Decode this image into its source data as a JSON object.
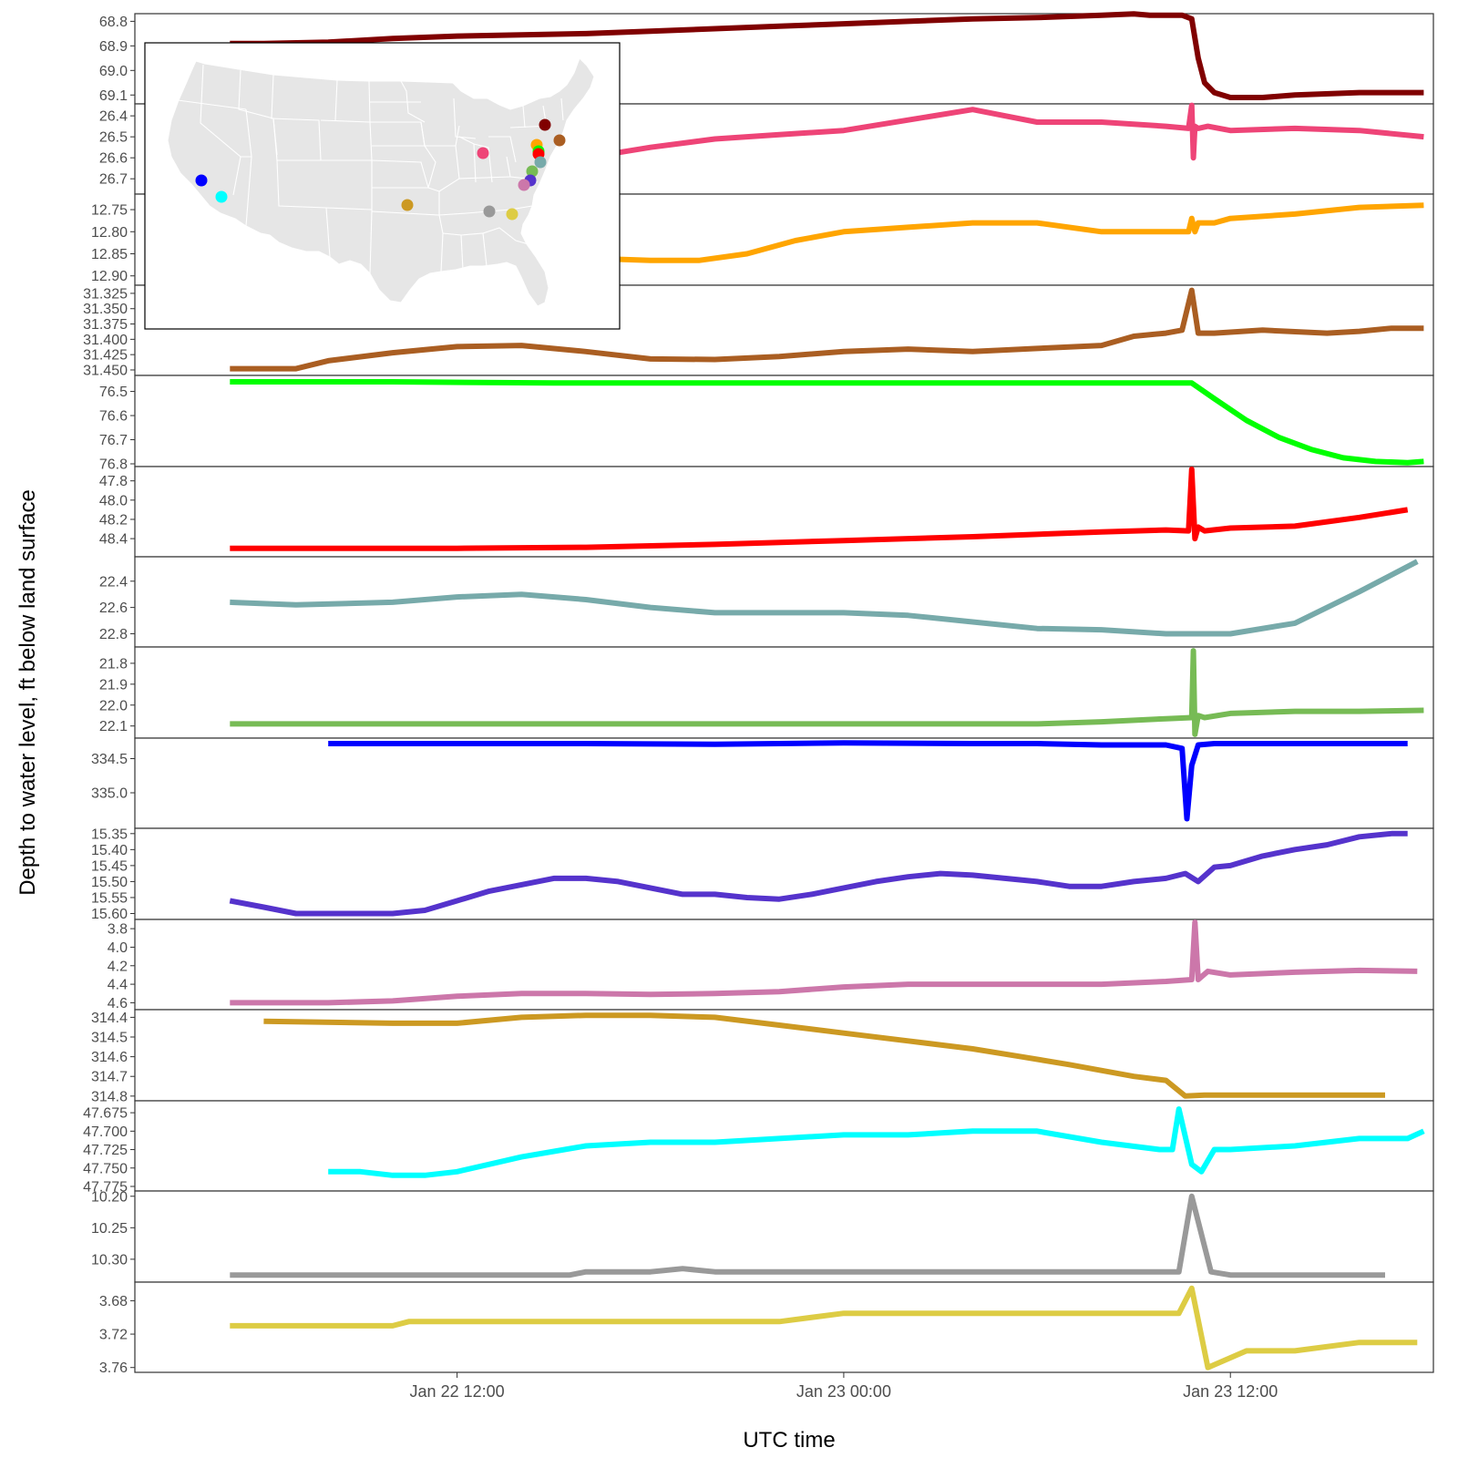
{
  "chart_data": {
    "type": "line",
    "title": "",
    "xlabel": "UTC time",
    "ylabel": "Depth to water level, ft below land surface",
    "x_unit": "hours",
    "x_ticks": [
      {
        "label": "Jan 22 12:00",
        "x": 12
      },
      {
        "label": "Jan 23 00:00",
        "x": 24
      },
      {
        "label": "Jan 23 12:00",
        "x": 36
      }
    ],
    "xlim": [
      2,
      42.3
    ],
    "panels": [
      {
        "name": "",
        "color": "#800000",
        "ylim": [
          68.78,
          69.125
        ],
        "inverted": true,
        "ticks": [
          {
            "v": 68.8,
            "label": "68.8"
          },
          {
            "v": 68.9,
            "label": "68.9"
          },
          {
            "v": 69.0,
            "label": "69.0"
          },
          {
            "v": 69.1,
            "label": "69.1"
          }
        ],
        "x": [
          4.95,
          6,
          8,
          10,
          12,
          14,
          16,
          18,
          20,
          22,
          24,
          26,
          28,
          30,
          32,
          33,
          33.5,
          34.5,
          34.8,
          35.0,
          35.2,
          35.5,
          36,
          37,
          38,
          40,
          42
        ],
        "y": [
          68.89,
          68.89,
          68.885,
          68.87,
          68.86,
          68.855,
          68.85,
          68.84,
          68.83,
          68.82,
          68.81,
          68.8,
          68.79,
          68.785,
          68.775,
          68.77,
          68.775,
          68.775,
          68.79,
          68.95,
          69.05,
          69.09,
          69.11,
          69.11,
          69.1,
          69.09,
          69.09
        ]
      },
      {
        "name": "",
        "color": "#EE4477",
        "ylim": [
          26.356,
          26.76
        ],
        "inverted": true,
        "ticks": [
          {
            "v": 26.4,
            "label": "26.4"
          },
          {
            "v": 26.5,
            "label": "26.5"
          },
          {
            "v": 26.6,
            "label": "26.6"
          },
          {
            "v": 26.7,
            "label": "26.7"
          }
        ],
        "x": [
          4.95,
          8,
          10,
          12,
          14,
          16,
          18,
          20,
          22,
          24,
          26,
          28,
          30,
          32,
          34,
          34.7,
          34.8,
          34.85,
          34.9,
          35.0,
          35.3,
          36,
          38,
          40,
          42
        ],
        "y": [
          26.63,
          26.63,
          26.63,
          26.62,
          26.62,
          26.6,
          26.55,
          26.51,
          26.49,
          26.47,
          26.42,
          26.37,
          26.43,
          26.43,
          26.45,
          26.46,
          26.35,
          26.6,
          26.45,
          26.46,
          26.45,
          26.47,
          26.46,
          26.47,
          26.5
        ]
      },
      {
        "name": "",
        "color": "#FFA500",
        "ylim": [
          12.721,
          12.915
        ],
        "inverted": true,
        "ticks": [
          {
            "v": 12.75,
            "label": "12.75"
          },
          {
            "v": 12.8,
            "label": "12.80"
          },
          {
            "v": 12.85,
            "label": "12.85"
          },
          {
            "v": 12.9,
            "label": "12.90"
          }
        ],
        "x": [
          4.95,
          12,
          14,
          16,
          18,
          19.5,
          21,
          22.5,
          24,
          26,
          28,
          30,
          32,
          34,
          34.7,
          34.8,
          34.9,
          35.0,
          35.5,
          36,
          38,
          40,
          42
        ],
        "y": [
          12.835,
          12.86,
          12.86,
          12.86,
          12.865,
          12.865,
          12.85,
          12.82,
          12.8,
          12.79,
          12.78,
          12.78,
          12.8,
          12.8,
          12.8,
          12.77,
          12.8,
          12.78,
          12.78,
          12.77,
          12.76,
          12.745,
          12.74
        ]
      },
      {
        "name": "",
        "color": "#AA5E22",
        "ylim": [
          31.3162,
          31.4545
        ],
        "inverted": true,
        "ticks": [
          {
            "v": 31.325,
            "label": "31.325"
          },
          {
            "v": 31.35,
            "label": "31.350"
          },
          {
            "v": 31.375,
            "label": "31.375"
          },
          {
            "v": 31.4,
            "label": "31.400"
          },
          {
            "v": 31.425,
            "label": "31.425"
          },
          {
            "v": 31.45,
            "label": "31.450"
          }
        ],
        "x": [
          4.95,
          7,
          8,
          10,
          12,
          14,
          16,
          18,
          20,
          22,
          24,
          26,
          28,
          30,
          32,
          33,
          34,
          34.5,
          34.8,
          35,
          35.5,
          37,
          39,
          40,
          41,
          42
        ],
        "y": [
          31.448,
          31.448,
          31.435,
          31.422,
          31.412,
          31.41,
          31.42,
          31.432,
          31.433,
          31.428,
          31.42,
          31.416,
          31.42,
          31.415,
          31.41,
          31.395,
          31.39,
          31.385,
          31.32,
          31.39,
          31.39,
          31.385,
          31.39,
          31.387,
          31.382,
          31.382
        ]
      },
      {
        "name": "",
        "color": "#00FF00",
        "ylim": [
          76.445,
          76.8
        ],
        "inverted": true,
        "ticks": [
          {
            "v": 76.5,
            "label": "76.5"
          },
          {
            "v": 76.6,
            "label": "76.6"
          },
          {
            "v": 76.7,
            "label": "76.7"
          },
          {
            "v": 76.8,
            "label": "76.8"
          }
        ],
        "x": [
          4.95,
          10,
          15,
          20,
          25,
          30,
          34,
          34.8,
          35.5,
          36.5,
          37.5,
          38.5,
          39.5,
          40.5,
          41.5,
          42
        ],
        "y": [
          76.46,
          76.46,
          76.465,
          76.465,
          76.465,
          76.465,
          76.465,
          76.465,
          76.53,
          76.62,
          76.69,
          76.74,
          76.775,
          76.79,
          76.795,
          76.79
        ]
      },
      {
        "name": "",
        "color": "#FF0000",
        "ylim": [
          47.68,
          48.56
        ],
        "inverted": true,
        "ticks": [
          {
            "v": 47.8,
            "label": "47.8"
          },
          {
            "v": 48.0,
            "label": "48.0"
          },
          {
            "v": 48.2,
            "label": "48.2"
          },
          {
            "v": 48.4,
            "label": "48.4"
          }
        ],
        "x": [
          4.95,
          8,
          12,
          16,
          20,
          24,
          28,
          32,
          34,
          34.7,
          34.8,
          34.9,
          35.0,
          35.2,
          36,
          38,
          40,
          41.5
        ],
        "y": [
          48.5,
          48.5,
          48.5,
          48.49,
          48.46,
          48.42,
          48.38,
          48.33,
          48.31,
          48.32,
          47.68,
          48.4,
          48.28,
          48.32,
          48.29,
          48.27,
          48.18,
          48.1
        ]
      },
      {
        "name": "",
        "color": "#77AAAA",
        "ylim": [
          22.235,
          22.88
        ],
        "inverted": true,
        "ticks": [
          {
            "v": 22.4,
            "label": "22.4"
          },
          {
            "v": 22.6,
            "label": "22.6"
          },
          {
            "v": 22.8,
            "label": "22.8"
          }
        ],
        "x": [
          4.95,
          7,
          10,
          12,
          14,
          16,
          18,
          20,
          22,
          24,
          26,
          28,
          30,
          32,
          34,
          36,
          38,
          40,
          41.8
        ],
        "y": [
          22.56,
          22.58,
          22.56,
          22.52,
          22.5,
          22.54,
          22.6,
          22.64,
          22.64,
          22.64,
          22.66,
          22.71,
          22.76,
          22.77,
          22.8,
          22.8,
          22.72,
          22.48,
          22.25
        ]
      },
      {
        "name": "",
        "color": "#77BB55",
        "ylim": [
          21.735,
          22.145
        ],
        "inverted": true,
        "ticks": [
          {
            "v": 21.8,
            "label": "21.8"
          },
          {
            "v": 21.9,
            "label": "21.9"
          },
          {
            "v": 22.0,
            "label": "22.0"
          },
          {
            "v": 22.1,
            "label": "22.1"
          }
        ],
        "x": [
          4.95,
          10,
          15,
          20,
          25,
          30,
          32,
          34,
          34.8,
          34.85,
          34.9,
          35.0,
          35.2,
          36,
          38,
          40,
          42
        ],
        "y": [
          22.09,
          22.09,
          22.09,
          22.09,
          22.09,
          22.09,
          22.08,
          22.065,
          22.06,
          21.74,
          22.14,
          22.05,
          22.06,
          22.04,
          22.03,
          22.03,
          22.025
        ]
      },
      {
        "name": "",
        "color": "#0000FF",
        "ylim": [
          334.24,
          335.48
        ],
        "inverted": true,
        "ticks": [
          {
            "v": 334.5,
            "label": "334.5"
          },
          {
            "v": 335.0,
            "label": "335.0"
          }
        ],
        "x": [
          8,
          12,
          16,
          20,
          24,
          28,
          30,
          32,
          34,
          34.5,
          34.65,
          34.8,
          35.0,
          35.5,
          36,
          38,
          40,
          41.5
        ],
        "y": [
          334.28,
          334.28,
          334.28,
          334.29,
          334.27,
          334.28,
          334.28,
          334.3,
          334.3,
          334.35,
          335.38,
          334.6,
          334.3,
          334.28,
          334.28,
          334.28,
          334.28,
          334.28
        ]
      },
      {
        "name": "",
        "color": "#5533CC",
        "ylim": [
          15.342,
          15.61
        ],
        "inverted": true,
        "ticks": [
          {
            "v": 15.35,
            "label": "15.35"
          },
          {
            "v": 15.4,
            "label": "15.40"
          },
          {
            "v": 15.45,
            "label": "15.45"
          },
          {
            "v": 15.5,
            "label": "15.50"
          },
          {
            "v": 15.55,
            "label": "15.55"
          },
          {
            "v": 15.6,
            "label": "15.60"
          }
        ],
        "x": [
          4.95,
          6,
          7,
          8,
          9,
          10,
          11,
          12,
          13,
          14,
          15,
          16,
          17,
          18,
          19,
          20,
          21,
          22,
          23,
          24,
          25,
          26,
          27,
          28,
          29,
          30,
          31,
          32,
          33,
          34,
          34.6,
          35,
          35.5,
          36,
          37,
          38,
          39,
          40,
          41,
          41.5
        ],
        "y": [
          15.56,
          15.58,
          15.6,
          15.6,
          15.6,
          15.6,
          15.59,
          15.56,
          15.53,
          15.51,
          15.49,
          15.49,
          15.5,
          15.52,
          15.54,
          15.54,
          15.55,
          15.555,
          15.54,
          15.52,
          15.5,
          15.485,
          15.475,
          15.48,
          15.49,
          15.5,
          15.515,
          15.515,
          15.5,
          15.49,
          15.475,
          15.5,
          15.455,
          15.45,
          15.42,
          15.4,
          15.385,
          15.36,
          15.35,
          15.35
        ]
      },
      {
        "name": "",
        "color": "#CC77AA",
        "ylim": [
          3.73,
          4.645
        ],
        "inverted": true,
        "ticks": [
          {
            "v": 3.8,
            "label": "3.8"
          },
          {
            "v": 4.0,
            "label": "4.0"
          },
          {
            "v": 4.2,
            "label": "4.2"
          },
          {
            "v": 4.4,
            "label": "4.4"
          },
          {
            "v": 4.6,
            "label": "4.6"
          }
        ],
        "x": [
          4.95,
          8,
          10,
          12,
          14,
          16,
          18,
          20,
          22,
          24,
          26,
          28,
          30,
          32,
          34,
          34.8,
          34.9,
          35.0,
          35.3,
          36,
          38,
          40,
          41.8
        ],
        "y": [
          4.6,
          4.6,
          4.58,
          4.53,
          4.5,
          4.5,
          4.51,
          4.5,
          4.48,
          4.43,
          4.4,
          4.4,
          4.4,
          4.4,
          4.37,
          4.35,
          3.73,
          4.35,
          4.26,
          4.3,
          4.27,
          4.25,
          4.26
        ]
      },
      {
        "name": "",
        "color": "#CC9922",
        "ylim": [
          314.375,
          314.81
        ],
        "inverted": true,
        "ticks": [
          {
            "v": 314.4,
            "label": "314.4"
          },
          {
            "v": 314.5,
            "label": "314.5"
          },
          {
            "v": 314.6,
            "label": "314.6"
          },
          {
            "v": 314.7,
            "label": "314.7"
          },
          {
            "v": 314.8,
            "label": "314.8"
          }
        ],
        "x": [
          6,
          10,
          12,
          14,
          16,
          18,
          20,
          22,
          24,
          26,
          28,
          29.5,
          31,
          33,
          34,
          34.6,
          35.2,
          38,
          40,
          40.8
        ],
        "y": [
          314.42,
          314.43,
          314.43,
          314.4,
          314.39,
          314.39,
          314.4,
          314.44,
          314.48,
          314.52,
          314.56,
          314.6,
          314.64,
          314.7,
          314.72,
          314.8,
          314.795,
          314.795,
          314.795,
          314.795
        ]
      },
      {
        "name": "",
        "color": "#00FFFF",
        "ylim": [
          47.6625,
          47.7775
        ],
        "inverted": true,
        "ticks": [
          {
            "v": 47.675,
            "label": "47.675"
          },
          {
            "v": 47.7,
            "label": "47.700"
          },
          {
            "v": 47.725,
            "label": "47.725"
          },
          {
            "v": 47.75,
            "label": "47.750"
          },
          {
            "v": 47.775,
            "label": "47.775"
          }
        ],
        "x": [
          8,
          9,
          10,
          11,
          12,
          13,
          14,
          16,
          18,
          20,
          22,
          24,
          26,
          28,
          30,
          32,
          33.8,
          34.2,
          34.4,
          34.8,
          35.1,
          35.5,
          36,
          38,
          40,
          41.5,
          42
        ],
        "y": [
          47.755,
          47.755,
          47.76,
          47.76,
          47.755,
          47.745,
          47.735,
          47.72,
          47.715,
          47.715,
          47.71,
          47.705,
          47.705,
          47.7,
          47.7,
          47.715,
          47.725,
          47.725,
          47.67,
          47.745,
          47.755,
          47.725,
          47.725,
          47.72,
          47.71,
          47.71,
          47.7
        ]
      },
      {
        "name": "",
        "color": "#999999",
        "ylim": [
          10.196,
          10.332
        ],
        "inverted": true,
        "ticks": [
          {
            "v": 10.2,
            "label": "10.20"
          },
          {
            "v": 10.25,
            "label": "10.25"
          },
          {
            "v": 10.3,
            "label": "10.30"
          }
        ],
        "x": [
          4.95,
          8,
          12,
          15.5,
          16,
          18,
          19,
          20,
          24,
          28,
          32,
          34,
          34.4,
          34.8,
          35.4,
          36,
          38,
          40.8
        ],
        "y": [
          10.325,
          10.325,
          10.325,
          10.325,
          10.32,
          10.32,
          10.315,
          10.32,
          10.32,
          10.32,
          10.32,
          10.32,
          10.32,
          10.2,
          10.32,
          10.325,
          10.325,
          10.325
        ]
      },
      {
        "name": "",
        "color": "#DDCC44",
        "ylim": [
          3.661,
          3.7625
        ],
        "inverted": true,
        "ticks": [
          {
            "v": 3.68,
            "label": "3.68"
          },
          {
            "v": 3.72,
            "label": "3.72"
          },
          {
            "v": 3.76,
            "label": "3.76"
          }
        ],
        "x": [
          4.95,
          10,
          10.5,
          14,
          18,
          22,
          24,
          26,
          30,
          34,
          34.4,
          34.8,
          35.3,
          36.5,
          38,
          40,
          41.8
        ],
        "y": [
          3.71,
          3.71,
          3.705,
          3.705,
          3.705,
          3.705,
          3.695,
          3.695,
          3.695,
          3.695,
          3.695,
          3.665,
          3.76,
          3.74,
          3.74,
          3.73,
          3.73
        ]
      }
    ],
    "inset_map": {
      "title": "",
      "land_color": "#E6E6E6",
      "site_colors": [
        "#800000",
        "#EE4477",
        "#FFA500",
        "#AA5E22",
        "#00FF00",
        "#FF0000",
        "#77AAAA",
        "#77BB55",
        "#0000FF",
        "#5533CC",
        "#CC77AA",
        "#CC9922",
        "#00FFFF",
        "#999999",
        "#DDCC44"
      ]
    }
  }
}
